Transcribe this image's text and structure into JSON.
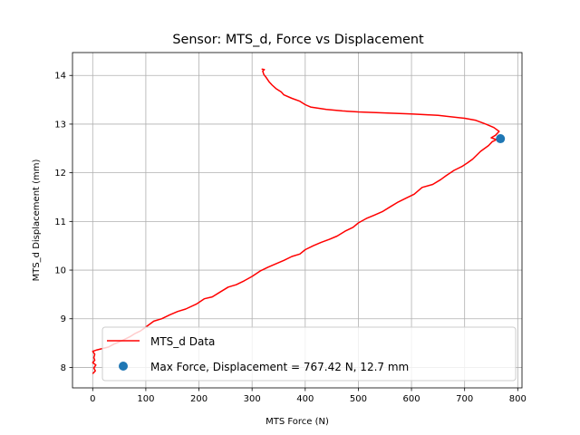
{
  "chart_data": {
    "type": "line",
    "title": "Sensor: MTS_d, Force vs Displacement",
    "xlabel": "MTS Force (N)",
    "ylabel": "MTS_d Displacement (mm)",
    "xlim": [
      -38,
      808
    ],
    "ylim": [
      7.58,
      14.47
    ],
    "xticks": [
      0,
      100,
      200,
      300,
      400,
      500,
      600,
      700,
      800
    ],
    "yticks": [
      8,
      9,
      10,
      11,
      12,
      13,
      14
    ],
    "grid": true,
    "legend_position": "lower-right",
    "colors": {
      "line": "#ff0000",
      "marker": "#1f77b4",
      "grid": "#b0b0b0"
    },
    "series": [
      {
        "name": "MTS_d Data",
        "style": "line",
        "color": "#ff0000",
        "points": [
          [
            0,
            7.87
          ],
          [
            5,
            7.93
          ],
          [
            2,
            7.99
          ],
          [
            6,
            8.05
          ],
          [
            0,
            8.1
          ],
          [
            4,
            8.15
          ],
          [
            2,
            8.2
          ],
          [
            4,
            8.27
          ],
          [
            0,
            8.33
          ],
          [
            8,
            8.36
          ],
          [
            30,
            8.42
          ],
          [
            40,
            8.48
          ],
          [
            55,
            8.55
          ],
          [
            70,
            8.63
          ],
          [
            80,
            8.7
          ],
          [
            90,
            8.75
          ],
          [
            100,
            8.83
          ],
          [
            115,
            8.95
          ],
          [
            130,
            9.0
          ],
          [
            145,
            9.08
          ],
          [
            160,
            9.15
          ],
          [
            175,
            9.2
          ],
          [
            195,
            9.3
          ],
          [
            210,
            9.41
          ],
          [
            225,
            9.45
          ],
          [
            240,
            9.55
          ],
          [
            255,
            9.65
          ],
          [
            270,
            9.7
          ],
          [
            285,
            9.78
          ],
          [
            300,
            9.87
          ],
          [
            315,
            9.98
          ],
          [
            330,
            10.06
          ],
          [
            345,
            10.13
          ],
          [
            360,
            10.2
          ],
          [
            375,
            10.28
          ],
          [
            390,
            10.33
          ],
          [
            400,
            10.42
          ],
          [
            415,
            10.5
          ],
          [
            430,
            10.57
          ],
          [
            445,
            10.63
          ],
          [
            460,
            10.7
          ],
          [
            475,
            10.8
          ],
          [
            490,
            10.88
          ],
          [
            500,
            10.97
          ],
          [
            515,
            11.06
          ],
          [
            530,
            11.13
          ],
          [
            545,
            11.2
          ],
          [
            560,
            11.3
          ],
          [
            575,
            11.4
          ],
          [
            590,
            11.48
          ],
          [
            605,
            11.56
          ],
          [
            620,
            11.7
          ],
          [
            640,
            11.76
          ],
          [
            655,
            11.86
          ],
          [
            665,
            11.94
          ],
          [
            680,
            12.05
          ],
          [
            695,
            12.13
          ],
          [
            705,
            12.2
          ],
          [
            715,
            12.28
          ],
          [
            730,
            12.44
          ],
          [
            745,
            12.56
          ],
          [
            752,
            12.64
          ],
          [
            760,
            12.68
          ],
          [
            750,
            12.72
          ],
          [
            758,
            12.77
          ],
          [
            765,
            12.85
          ],
          [
            755,
            12.93
          ],
          [
            740,
            13.0
          ],
          [
            720,
            13.08
          ],
          [
            700,
            13.12
          ],
          [
            650,
            13.18
          ],
          [
            600,
            13.21
          ],
          [
            550,
            13.23
          ],
          [
            500,
            13.25
          ],
          [
            470,
            13.27
          ],
          [
            440,
            13.3
          ],
          [
            410,
            13.35
          ],
          [
            400,
            13.4
          ],
          [
            390,
            13.47
          ],
          [
            375,
            13.53
          ],
          [
            360,
            13.6
          ],
          [
            355,
            13.66
          ],
          [
            345,
            13.73
          ],
          [
            338,
            13.8
          ],
          [
            332,
            13.87
          ],
          [
            327,
            13.95
          ],
          [
            322,
            14.02
          ],
          [
            320,
            14.09
          ],
          [
            323,
            14.12
          ],
          [
            318,
            14.13
          ]
        ]
      },
      {
        "name": "Max Force, Displacement = 767.42 N, 12.7 mm",
        "style": "marker",
        "color": "#1f77b4",
        "points": [
          [
            767.42,
            12.7
          ]
        ]
      }
    ]
  }
}
